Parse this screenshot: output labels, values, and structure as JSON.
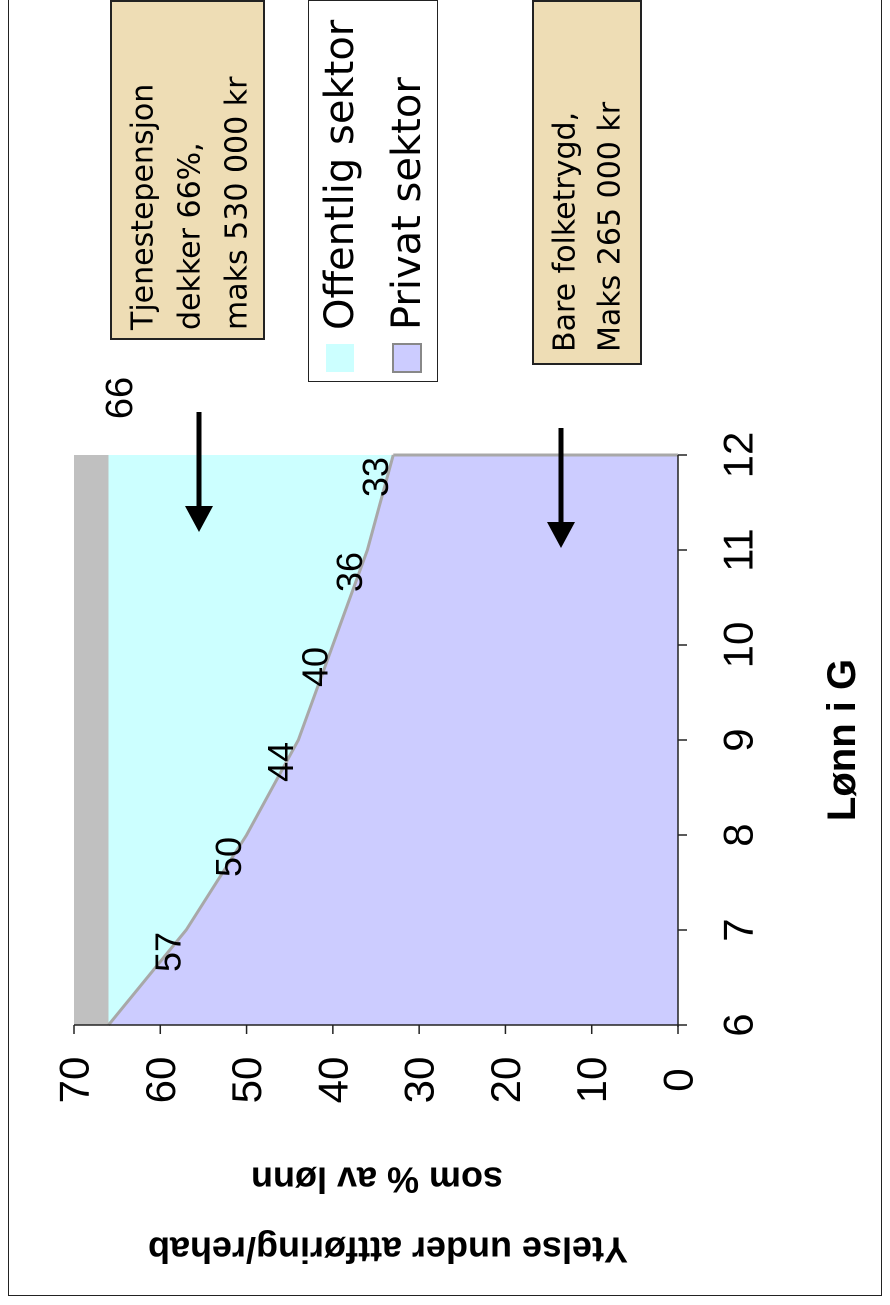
{
  "chart_data": {
    "type": "area",
    "title": "",
    "xlabel": "Lønn i G",
    "ylabel_line1": "Ytelse under attføring/rehab",
    "ylabel_line2": "som % av lønn",
    "x": [
      6,
      7,
      8,
      9,
      10,
      11,
      12
    ],
    "xlim": [
      6,
      12
    ],
    "ylim": [
      0,
      70
    ],
    "yticks": [
      "0",
      "10",
      "20",
      "30",
      "40",
      "50",
      "60",
      "70"
    ],
    "xticks": [
      "6",
      "7",
      "8",
      "9",
      "10",
      "11",
      "12"
    ],
    "series": [
      {
        "name": "Privat sektor",
        "color": "#ccccff",
        "values": [
          66,
          57,
          50,
          44,
          40,
          36,
          33
        ]
      },
      {
        "name": "Offentlig sektor",
        "color": "#ccffff",
        "values": [
          66,
          66,
          66,
          66,
          66,
          66,
          66
        ]
      }
    ],
    "data_labels": [
      "57",
      "50",
      "44",
      "40",
      "36",
      "33"
    ],
    "data_label_x": [
      7,
      8,
      9,
      10,
      11,
      12
    ],
    "offentlig_label": "66",
    "grey_band_color": "#c0c0c0",
    "annotation_public": [
      "Tjenestepensjon",
      "dekker 66%,",
      "maks 530 000 kr"
    ],
    "annotation_private": [
      "Bare folketrygd,",
      "Maks 265 000 kr"
    ],
    "legend": [
      "Offentlig sektor",
      "Privat sektor"
    ],
    "legend_placement": "top",
    "grid": false,
    "orientation": "rotated 90° counter-clockwise"
  }
}
